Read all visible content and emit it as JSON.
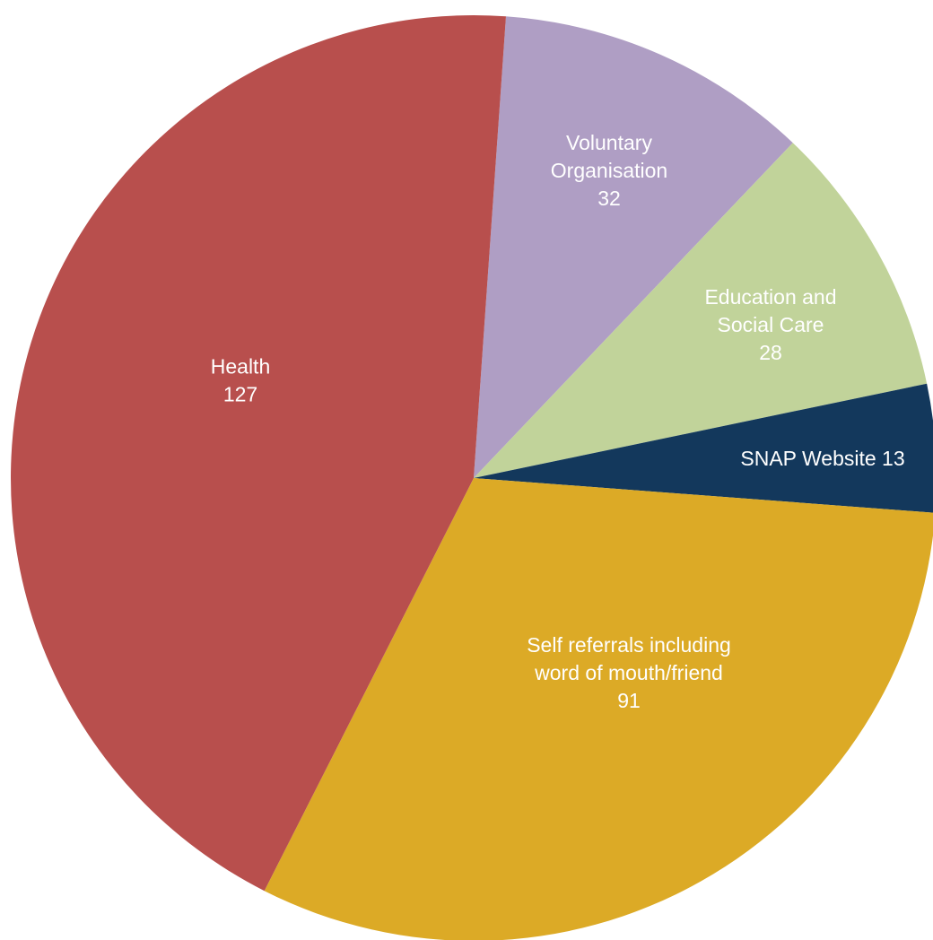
{
  "chart_data": {
    "type": "pie",
    "title": "",
    "slices": [
      {
        "label_lines": [
          "Voluntary",
          "Organisation"
        ],
        "value": 32,
        "color": "#AF9EC4"
      },
      {
        "label_lines": [
          "Education and",
          "Social Care"
        ],
        "value": 28,
        "color": "#C1D39A"
      },
      {
        "label_lines": [
          "SNAP Website"
        ],
        "value": 13,
        "color": "#13385C",
        "value_inline": true
      },
      {
        "label_lines": [
          "Self referrals including",
          "word of mouth/friend"
        ],
        "value": 91,
        "color": "#DCAA26"
      },
      {
        "label_lines": [
          "Health"
        ],
        "value": 127,
        "color": "#B84F4D"
      }
    ]
  }
}
